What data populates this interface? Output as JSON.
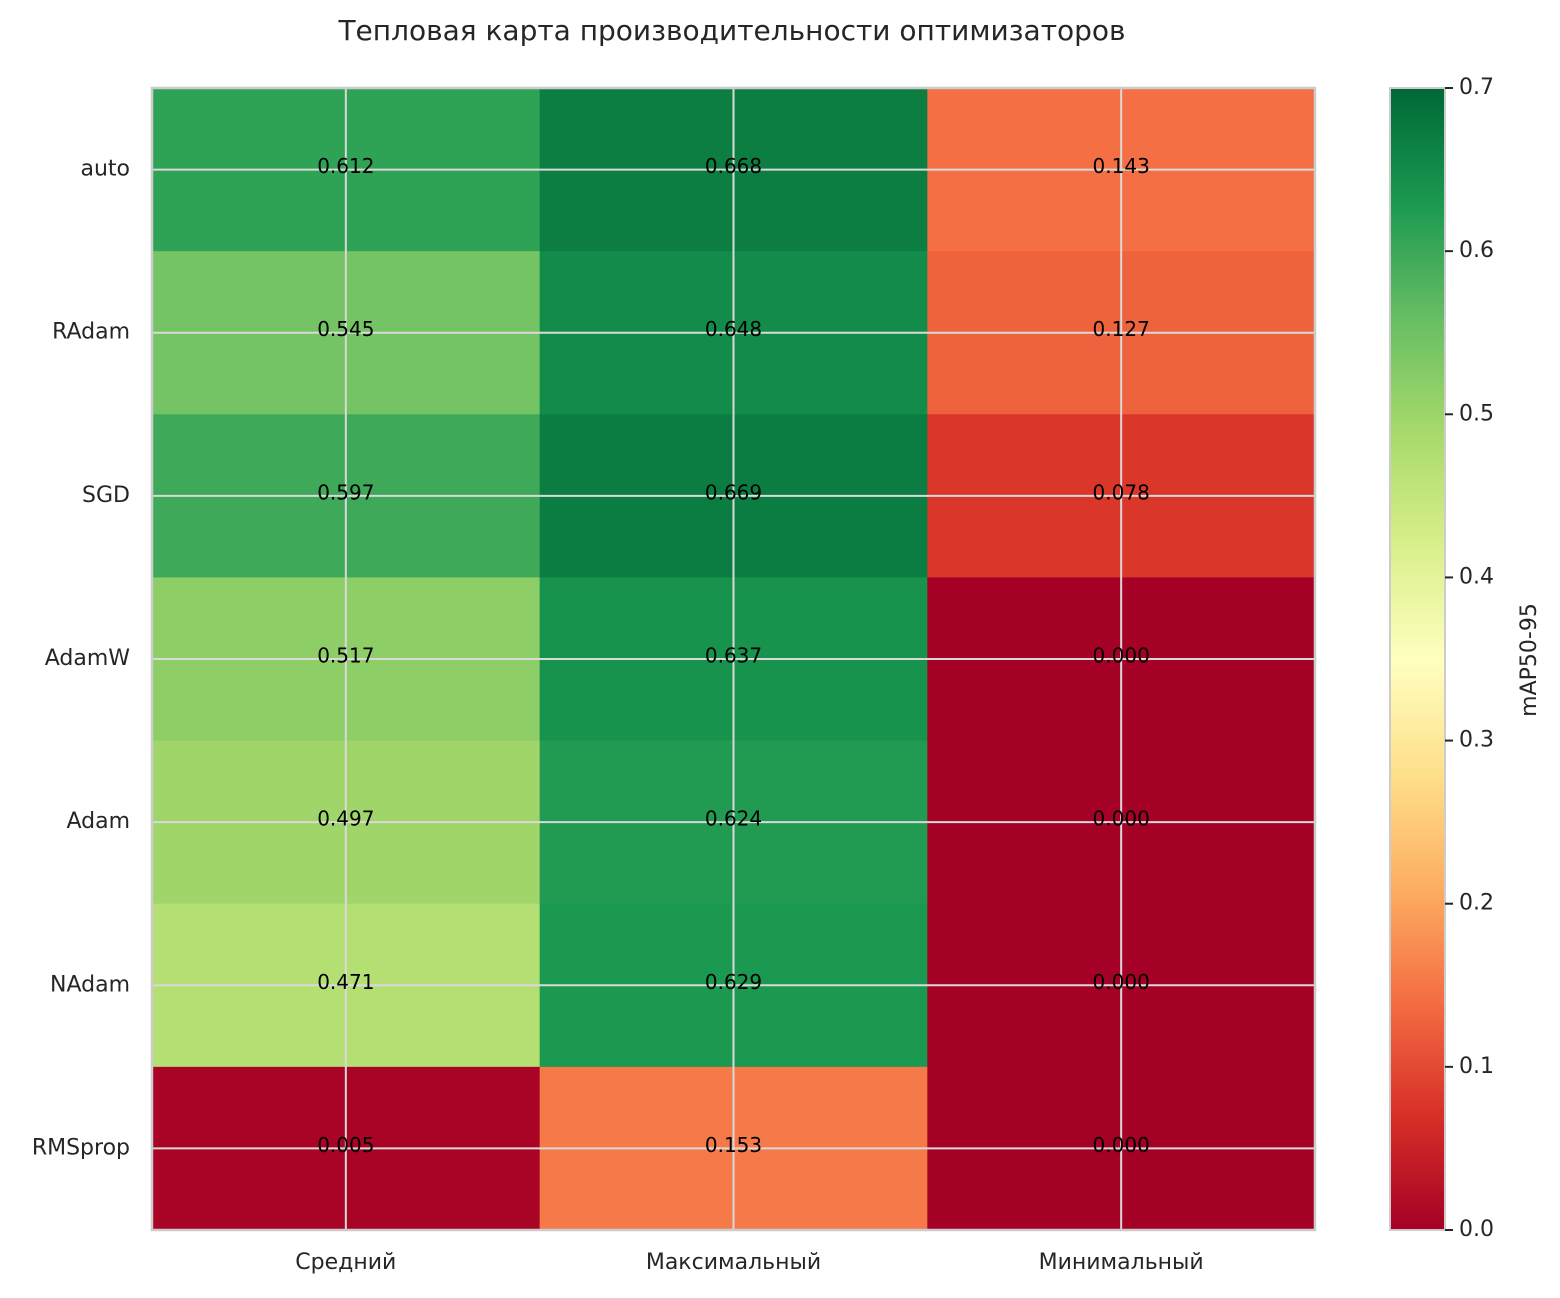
{
  "chart_data": {
    "type": "heatmap",
    "title": "Тепловая карта производительности оптимизаторов",
    "rows": [
      "auto",
      "RAdam",
      "SGD",
      "AdamW",
      "Adam",
      "NAdam",
      "RMSprop"
    ],
    "columns": [
      "Средний",
      "Максимальный",
      "Минимальный"
    ],
    "values": [
      [
        0.612,
        0.668,
        0.143
      ],
      [
        0.545,
        0.648,
        0.127
      ],
      [
        0.597,
        0.669,
        0.078
      ],
      [
        0.517,
        0.637,
        0
      ],
      [
        0.497,
        0.624,
        0
      ],
      [
        0.471,
        0.629,
        0
      ],
      [
        0.005,
        0.153,
        0
      ]
    ],
    "value_labels": [
      [
        "0.612",
        "0.668",
        "0.143"
      ],
      [
        "0.545",
        "0.648",
        "0.127"
      ],
      [
        "0.597",
        "0.669",
        "0.078"
      ],
      [
        "0.517",
        "0.637",
        "0.000"
      ],
      [
        "0.497",
        "0.624",
        "0.000"
      ],
      [
        "0.471",
        "0.629",
        "0.000"
      ],
      [
        "0.005",
        "0.153",
        "0.000"
      ]
    ],
    "colormap": "RdYlGn",
    "colorbar_label": "mAP50-95",
    "clim": [
      0,
      0.7
    ],
    "cticks": [
      {
        "value": 0,
        "label": "0.0"
      },
      {
        "value": 0.1,
        "label": "0.1"
      },
      {
        "value": 0.2,
        "label": "0.2"
      },
      {
        "value": 0.3,
        "label": "0.3"
      },
      {
        "value": 0.4,
        "label": "0.4"
      },
      {
        "value": 0.5,
        "label": "0.5"
      },
      {
        "value": 0.6,
        "label": "0.6"
      },
      {
        "value": 0.7,
        "label": "0.7"
      }
    ],
    "grid": true
  }
}
